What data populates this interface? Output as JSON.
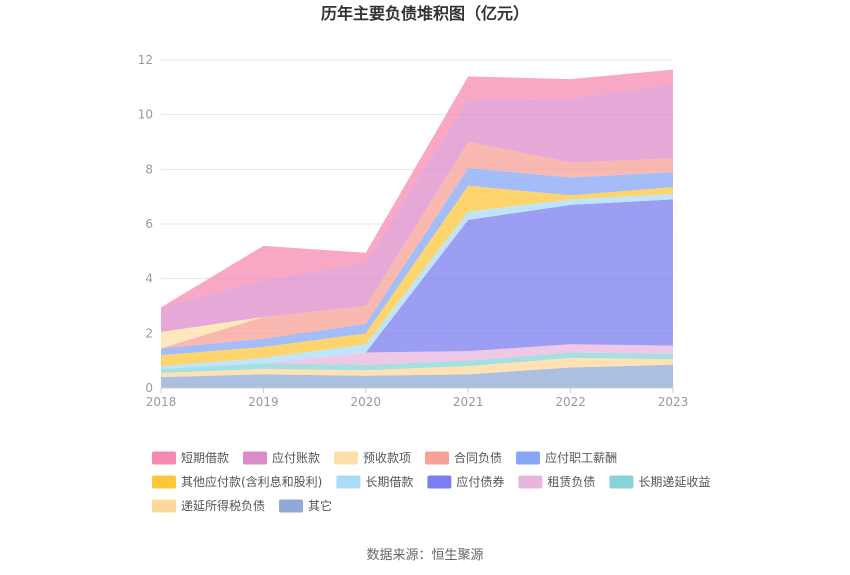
{
  "chart_data": {
    "type": "area",
    "stacked": true,
    "title": "历年主要负债堆积图（亿元）",
    "source": "数据来源：恒生聚源",
    "x": [
      "2018",
      "2019",
      "2020",
      "2021",
      "2022",
      "2023"
    ],
    "ylim": [
      0,
      12
    ],
    "yticks": [
      "0",
      "2",
      "4",
      "6",
      "8",
      "10",
      "12"
    ],
    "grid": true,
    "legend_position": "bottom",
    "series": [
      {
        "name": "其它",
        "color": "#8faad6",
        "values": [
          0.4,
          0.5,
          0.45,
          0.5,
          0.75,
          0.85
        ]
      },
      {
        "name": "递延所得税负债",
        "color": "#fdd89b",
        "values": [
          0.15,
          0.2,
          0.2,
          0.3,
          0.35,
          0.2
        ]
      },
      {
        "name": "长期递延收益",
        "color": "#86d4d7",
        "values": [
          0.15,
          0.2,
          0.2,
          0.2,
          0.2,
          0.2
        ]
      },
      {
        "name": "租赁负债",
        "color": "#e8b5dd",
        "values": [
          0.0,
          0.0,
          0.45,
          0.35,
          0.3,
          0.3
        ]
      },
      {
        "name": "应付债券",
        "color": "#7b7ef0",
        "values": [
          0.0,
          0.0,
          0.0,
          4.8,
          5.1,
          5.35
        ]
      },
      {
        "name": "长期借款",
        "color": "#a8dcf7",
        "values": [
          0.1,
          0.2,
          0.3,
          0.3,
          0.2,
          0.2
        ]
      },
      {
        "name": "其他应付款(含利息和股利)",
        "color": "#fdc73b",
        "values": [
          0.4,
          0.4,
          0.4,
          0.95,
          0.15,
          0.25
        ]
      },
      {
        "name": "应付职工薪酬",
        "color": "#86a7f7",
        "values": [
          0.25,
          0.3,
          0.35,
          0.65,
          0.65,
          0.55
        ]
      },
      {
        "name": "合同负债",
        "color": "#f7a197",
        "values": [
          0.0,
          0.8,
          0.65,
          0.95,
          0.55,
          0.5
        ]
      },
      {
        "name": "预收款项",
        "color": "#fde0a7",
        "values": [
          0.6,
          0.0,
          0.0,
          0.0,
          0.0,
          0.0
        ]
      },
      {
        "name": "应付账款",
        "color": "#dc8bc9",
        "values": [
          0.9,
          1.35,
          1.6,
          1.55,
          2.35,
          2.7
        ]
      },
      {
        "name": "短期借款",
        "color": "#f589b2",
        "values": [
          0.0,
          1.25,
          0.35,
          0.85,
          0.7,
          0.55
        ]
      }
    ],
    "legend_order": [
      "短期借款",
      "应付账款",
      "预收款项",
      "合同负债",
      "应付职工薪酬",
      "其他应付款(含利息和股利)",
      "长期借款",
      "应付债券",
      "租赁负债",
      "长期递延收益",
      "递延所得税负债",
      "其它"
    ]
  }
}
